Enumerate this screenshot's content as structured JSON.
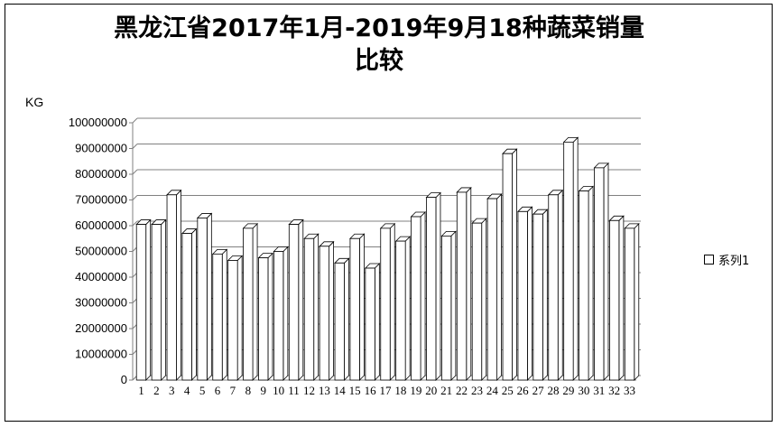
{
  "chart_data": {
    "type": "bar",
    "title_line1": "黑龙江省2017年1月-2019年9月18种蔬菜销量",
    "title_line2": "比较",
    "ylabel": "KG",
    "ylim": [
      0,
      100000000
    ],
    "yticks": [
      0,
      10000000,
      20000000,
      30000000,
      40000000,
      50000000,
      60000000,
      70000000,
      80000000,
      90000000,
      100000000
    ],
    "ytick_labels": [
      "0",
      "10000000",
      "20000000",
      "30000000",
      "40000000",
      "50000000",
      "60000000",
      "70000000",
      "80000000",
      "90000000",
      "100000000"
    ],
    "grid": true,
    "legend_position": "right",
    "categories": [
      "1",
      "2",
      "3",
      "4",
      "5",
      "6",
      "7",
      "8",
      "9",
      "10",
      "11",
      "12",
      "13",
      "14",
      "15",
      "16",
      "17",
      "18",
      "19",
      "20",
      "21",
      "22",
      "23",
      "24",
      "25",
      "26",
      "27",
      "28",
      "29",
      "30",
      "31",
      "32",
      "33"
    ],
    "x_tick_text": [
      "1",
      "2",
      "3",
      "4",
      "5",
      "6",
      "7",
      "8",
      "9",
      "10",
      "11",
      "12",
      "13",
      "14",
      "15",
      "16",
      "17",
      "18",
      "19",
      "20",
      "21",
      "22",
      "23",
      "24",
      "25",
      "26",
      "27",
      "28",
      "29",
      "30",
      "31",
      "32",
      "33"
    ],
    "series": [
      {
        "name": "系列1",
        "values": [
          60500000,
          60500000,
          72000000,
          57000000,
          63000000,
          49000000,
          46500000,
          59000000,
          47500000,
          50000000,
          60500000,
          55000000,
          52000000,
          45500000,
          55000000,
          43500000,
          59000000,
          54000000,
          63500000,
          71000000,
          56000000,
          73000000,
          61000000,
          70500000,
          88000000,
          65500000,
          64500000,
          72000000,
          92500000,
          73500000,
          82500000,
          62000000,
          59000000
        ]
      }
    ],
    "colors": {
      "bar_fill": "#ffffff",
      "bar_stroke": "#000000",
      "grid": "#808080",
      "frame": "#000000"
    }
  }
}
